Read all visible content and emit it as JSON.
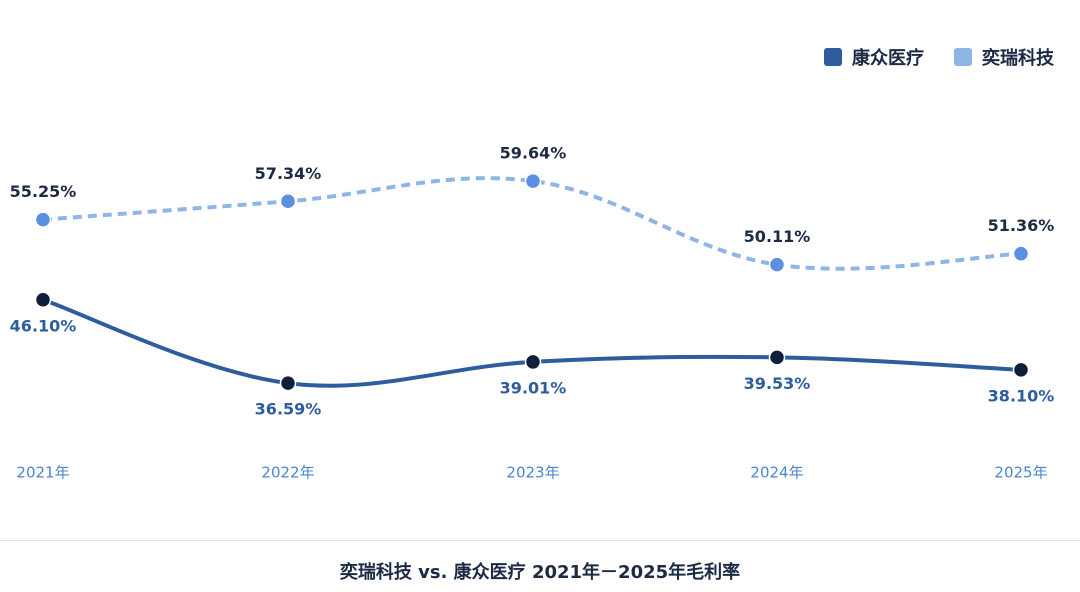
{
  "chart_data": {
    "type": "line",
    "title": "奕瑞科技 vs. 康众医疗 2021年－2025年毛利率",
    "categories": [
      "2021年",
      "2022年",
      "2023年",
      "2024年",
      "2025年"
    ],
    "series": [
      {
        "name": "康众医疗",
        "values": [
          46.1,
          36.59,
          39.01,
          39.53,
          38.1
        ],
        "labels": [
          "46.10%",
          "36.59%",
          "39.01%",
          "39.53%",
          "38.10%"
        ],
        "color": "#2e5d9e",
        "marker_color": "#0f1f3a",
        "line_style": "solid",
        "label_position": "below",
        "label_color": "#2e5d9e"
      },
      {
        "name": "奕瑞科技",
        "values": [
          55.25,
          57.34,
          59.64,
          50.11,
          51.36
        ],
        "labels": [
          "55.25%",
          "57.34%",
          "59.64%",
          "50.11%",
          "51.36%"
        ],
        "color": "#8fb4e6",
        "marker_color": "#5b8fe0",
        "line_style": "dashed",
        "label_position": "above",
        "label_color": "#1c2a44"
      }
    ],
    "xlabel": "",
    "ylabel": "",
    "legend_position": "top-right",
    "grid": false,
    "tick_color": "#4a86cf"
  }
}
